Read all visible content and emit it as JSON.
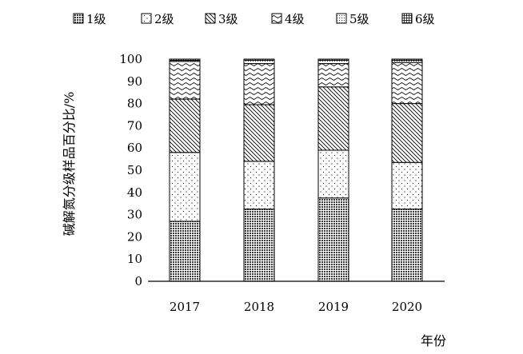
{
  "chart_data": {
    "type": "bar",
    "stacked": true,
    "categories": [
      "2017",
      "2018",
      "2019",
      "2020"
    ],
    "series": [
      {
        "name": "1级",
        "values": [
          27,
          32.5,
          37.5,
          32.5
        ]
      },
      {
        "name": "2级",
        "values": [
          31,
          21.5,
          21.5,
          21
        ]
      },
      {
        "name": "3级",
        "values": [
          24,
          25.5,
          28.5,
          26.5
        ]
      },
      {
        "name": "4级",
        "values": [
          17,
          18.5,
          10.5,
          18.5
        ]
      },
      {
        "name": "5级",
        "values": [
          0.5,
          1.5,
          1.5,
          1.0
        ]
      },
      {
        "name": "6级",
        "values": [
          0.5,
          0.5,
          0.5,
          0.5
        ]
      }
    ],
    "xlabel": "年份",
    "ylabel": "碱解氮分级样品百分比/%",
    "ylim": [
      0,
      100
    ],
    "yticks": [
      "0",
      "10",
      "20",
      "30",
      "40",
      "50",
      "60",
      "70",
      "80",
      "90",
      "100"
    ],
    "legend_position": "top",
    "grid": false
  }
}
